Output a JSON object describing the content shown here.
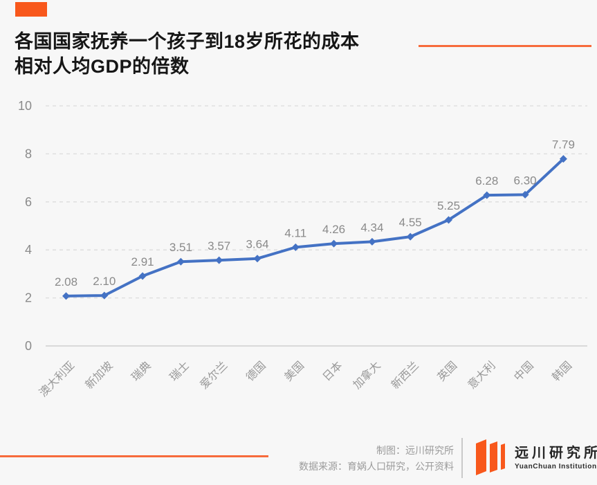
{
  "header": {
    "title_line1": "各国国家抚养一个孩子到18岁所花的成本",
    "title_line2": "相对人均GDP的倍数"
  },
  "chart_data": {
    "type": "line",
    "title": "各国国家抚养一个孩子到18岁所花的成本相对人均GDP的倍数",
    "categories": [
      "澳大利亚",
      "新加坡",
      "瑞典",
      "瑞士",
      "爱尔兰",
      "德国",
      "美国",
      "日本",
      "加拿大",
      "新西兰",
      "英国",
      "意大利",
      "中国",
      "韩国"
    ],
    "values": [
      2.08,
      2.1,
      2.91,
      3.51,
      3.57,
      3.64,
      4.11,
      4.26,
      4.34,
      4.55,
      5.25,
      6.28,
      6.3,
      7.79
    ],
    "point_labels": [
      "2.08",
      "2.10",
      "2.91",
      "3.51",
      "3.57",
      "3.64",
      "4.11",
      "4.26",
      "4.34",
      "4.55",
      "5.25",
      "6.28",
      "6.30",
      "7.79"
    ],
    "xlabel": "",
    "ylabel": "",
    "ylim": [
      0,
      10
    ],
    "yticks": [
      "0",
      "2",
      "4",
      "6",
      "8",
      "10"
    ],
    "grid": "horizontal-dashed",
    "legend": "none",
    "line_color": "#4472C4",
    "marker": "diamond",
    "gridline_color": "#dcdcdc",
    "axis_line_color": "#cfcfcf",
    "label_color": "#8a8a8a",
    "tick_label_color": "#999999"
  },
  "footer": {
    "credit_line1": "制图：远川研究所",
    "credit_line2": "数据来源：育娲人口研究，公开资料",
    "logo": {
      "icon": "three-vertical-bars-icon",
      "icon_color": "#F8581C",
      "name_cn": "远川研究所",
      "name_en": "YuanChuan Institution"
    }
  },
  "colors": {
    "background": "#f7f7f7",
    "accent_orange": "#F8581C",
    "accent_line_orange": "#F76B3C",
    "series_blue": "#4472C4"
  }
}
